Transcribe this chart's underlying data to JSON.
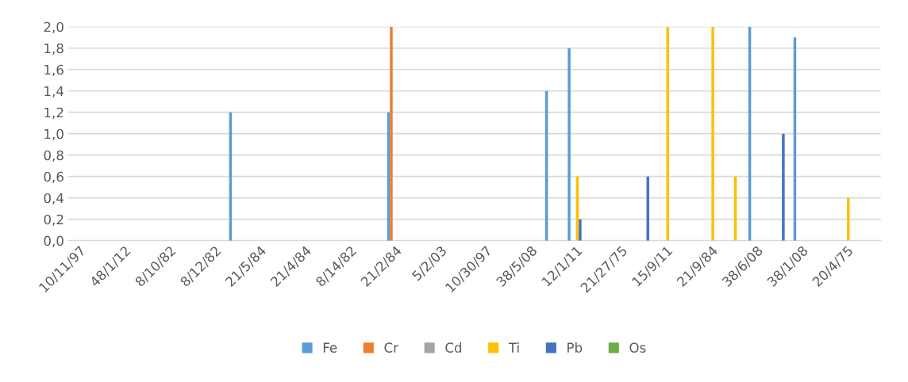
{
  "chart_data": {
    "type": "bar",
    "categories": [
      "10/11/97",
      null,
      "48/1/12",
      null,
      "8/10/82",
      null,
      "8/12/82",
      null,
      "21/5/84",
      null,
      "21/4/84",
      null,
      "8/14/82",
      null,
      "21/2/84",
      null,
      "5/2/03",
      null,
      "10/30/97",
      null,
      "38/5/08",
      null,
      "12/1/11",
      null,
      "21/27/75",
      null,
      "15/9/11",
      null,
      "21/9/84",
      null,
      "38/6/08",
      null,
      "38/1/08",
      null,
      "20/4/75",
      null
    ],
    "series": [
      {
        "name": "Fe",
        "color": "#5b9bd5",
        "values": [
          null,
          null,
          null,
          null,
          null,
          null,
          null,
          1.2,
          null,
          null,
          null,
          null,
          null,
          null,
          1.2,
          null,
          null,
          null,
          null,
          null,
          null,
          1.4,
          1.8,
          null,
          null,
          null,
          null,
          null,
          null,
          null,
          2.0,
          null,
          1.9,
          null,
          null,
          null
        ]
      },
      {
        "name": "Cr",
        "color": "#ed7d31",
        "values": [
          null,
          null,
          null,
          null,
          null,
          null,
          null,
          null,
          null,
          null,
          null,
          null,
          null,
          null,
          2.0,
          null,
          null,
          null,
          null,
          null,
          null,
          null,
          null,
          null,
          null,
          null,
          null,
          null,
          null,
          null,
          null,
          null,
          null,
          null,
          null,
          null
        ]
      },
      {
        "name": "Cd",
        "color": "#a5a5a5",
        "values": [
          null,
          null,
          null,
          null,
          null,
          null,
          null,
          null,
          null,
          null,
          null,
          null,
          null,
          null,
          null,
          null,
          null,
          null,
          null,
          null,
          null,
          null,
          null,
          null,
          null,
          null,
          null,
          null,
          null,
          null,
          null,
          null,
          null,
          null,
          null,
          null
        ]
      },
      {
        "name": "Ti",
        "color": "#ffc000",
        "values": [
          null,
          null,
          null,
          null,
          null,
          null,
          null,
          null,
          null,
          null,
          null,
          null,
          null,
          null,
          null,
          null,
          null,
          null,
          null,
          null,
          null,
          null,
          0.6,
          null,
          null,
          null,
          2.0,
          null,
          2.0,
          0.6,
          null,
          null,
          null,
          null,
          0.4,
          null
        ]
      },
      {
        "name": "Pb",
        "color": "#4472c4",
        "values": [
          null,
          null,
          null,
          null,
          null,
          null,
          null,
          null,
          null,
          null,
          null,
          null,
          null,
          null,
          null,
          null,
          null,
          null,
          null,
          null,
          null,
          null,
          0.2,
          null,
          null,
          0.6,
          null,
          null,
          null,
          null,
          null,
          1.0,
          null,
          null,
          null,
          null
        ]
      },
      {
        "name": "Os",
        "color": "#70ad47",
        "values": [
          null,
          null,
          null,
          null,
          null,
          null,
          null,
          null,
          null,
          null,
          null,
          null,
          null,
          null,
          null,
          null,
          null,
          null,
          null,
          null,
          null,
          null,
          null,
          null,
          null,
          null,
          null,
          null,
          null,
          null,
          null,
          null,
          null,
          null,
          null,
          null
        ]
      }
    ],
    "ylim": [
      0,
      2
    ],
    "yticks": [
      {
        "value": 0,
        "label": "0,0"
      },
      {
        "value": 0.2,
        "label": "0,2"
      },
      {
        "value": 0.4,
        "label": "0,4"
      },
      {
        "value": 0.6,
        "label": "0,6"
      },
      {
        "value": 0.8,
        "label": "0,8"
      },
      {
        "value": 1.0,
        "label": "1,0"
      },
      {
        "value": 1.2,
        "label": "1,2"
      },
      {
        "value": 1.4,
        "label": "1,4"
      },
      {
        "value": 1.6,
        "label": "1,6"
      },
      {
        "value": 1.8,
        "label": "1,8"
      },
      {
        "value": 2.0,
        "label": "2,0"
      }
    ],
    "grid": "y",
    "legend": "bottom"
  }
}
